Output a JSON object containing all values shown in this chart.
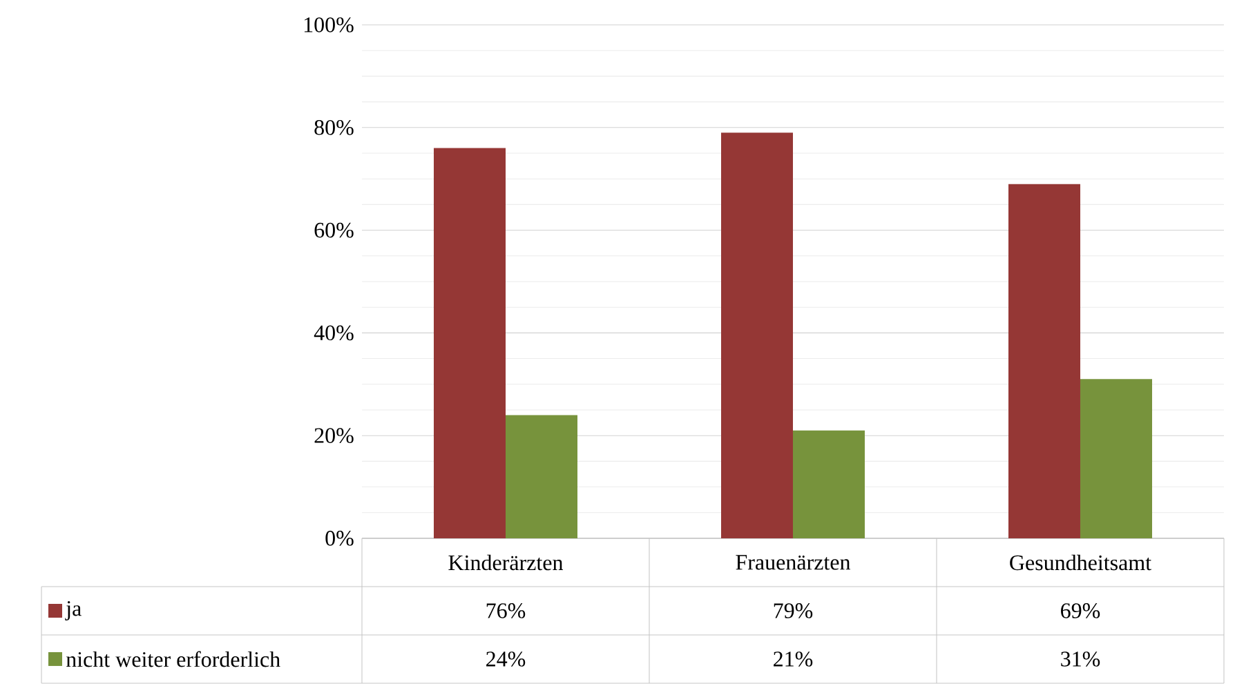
{
  "chart_data": {
    "type": "bar",
    "categories": [
      "Kinderärzten",
      "Frauenärzten",
      "Gesundheitsamt"
    ],
    "series": [
      {
        "name": "ja",
        "color": "#953735",
        "values": [
          76,
          79,
          69
        ],
        "value_labels": [
          "76%",
          "79%",
          "69%"
        ]
      },
      {
        "name": "nicht weiter erforderlich",
        "color": "#77933c",
        "values": [
          24,
          21,
          31
        ],
        "value_labels": [
          "24%",
          "21%",
          "31%"
        ]
      }
    ],
    "ylim": [
      0,
      100
    ],
    "yticks": [
      {
        "value": 0,
        "label": "0%"
      },
      {
        "value": 20,
        "label": "20%"
      },
      {
        "value": 40,
        "label": "40%"
      },
      {
        "value": 60,
        "label": "60%"
      },
      {
        "value": 80,
        "label": "80%"
      },
      {
        "value": 100,
        "label": "100%"
      }
    ],
    "grid": "y",
    "legend": "bottom"
  }
}
